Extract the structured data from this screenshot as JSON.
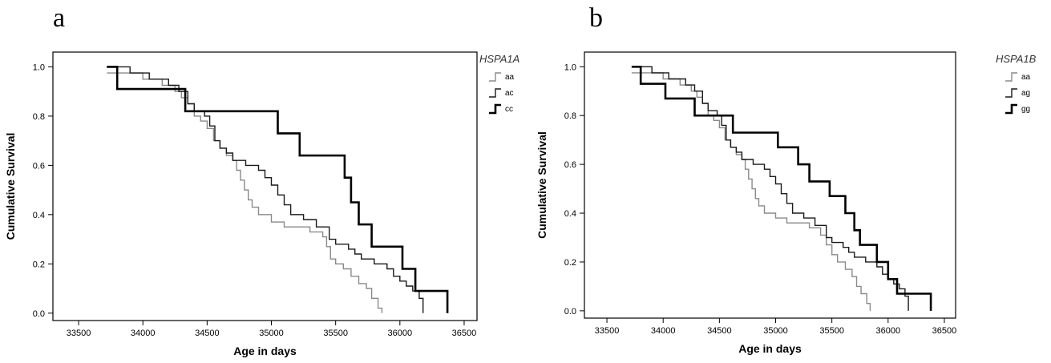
{
  "panels": [
    {
      "letter": "a"
    },
    {
      "letter": "b"
    }
  ],
  "chart_data": [
    {
      "type": "line",
      "step": true,
      "xlabel": "Age in days",
      "ylabel": "Cumulative Survival",
      "xlim": [
        33300,
        36600
      ],
      "ylim": [
        -0.03,
        1.06
      ],
      "xticks": [
        33500,
        34000,
        34500,
        35000,
        35500,
        36000,
        36500
      ],
      "yticks": [
        "0.0",
        "0.2",
        "0.4",
        "0.6",
        "0.8",
        "1.0"
      ],
      "legend_title": "HSPA1A",
      "legend_position": "right",
      "series": [
        {
          "name": "aa",
          "stroke": "#8a8a8a",
          "width": 1.4,
          "points": [
            [
              33720,
              0.975
            ],
            [
              34000,
              0.95
            ],
            [
              34150,
              0.925
            ],
            [
              34250,
              0.9
            ],
            [
              34300,
              0.875
            ],
            [
              34350,
              0.85
            ],
            [
              34400,
              0.8
            ],
            [
              34450,
              0.78
            ],
            [
              34500,
              0.75
            ],
            [
              34550,
              0.7
            ],
            [
              34600,
              0.67
            ],
            [
              34650,
              0.64
            ],
            [
              34700,
              0.62
            ],
            [
              34730,
              0.58
            ],
            [
              34760,
              0.54
            ],
            [
              34790,
              0.5
            ],
            [
              34820,
              0.46
            ],
            [
              34850,
              0.43
            ],
            [
              34900,
              0.4
            ],
            [
              35000,
              0.37
            ],
            [
              35100,
              0.35
            ],
            [
              35300,
              0.33
            ],
            [
              35400,
              0.31
            ],
            [
              35430,
              0.27
            ],
            [
              35460,
              0.22
            ],
            [
              35500,
              0.2
            ],
            [
              35560,
              0.18
            ],
            [
              35620,
              0.15
            ],
            [
              35680,
              0.12
            ],
            [
              35740,
              0.1
            ],
            [
              35780,
              0.06
            ],
            [
              35830,
              0.02
            ],
            [
              35860,
              0.0
            ]
          ]
        },
        {
          "name": "ac",
          "stroke": "#1a1a1a",
          "width": 1.4,
          "points": [
            [
              33720,
              1.0
            ],
            [
              33900,
              0.975
            ],
            [
              34050,
              0.95
            ],
            [
              34200,
              0.925
            ],
            [
              34280,
              0.9
            ],
            [
              34350,
              0.85
            ],
            [
              34400,
              0.82
            ],
            [
              34480,
              0.8
            ],
            [
              34520,
              0.76
            ],
            [
              34560,
              0.7
            ],
            [
              34600,
              0.67
            ],
            [
              34650,
              0.65
            ],
            [
              34700,
              0.62
            ],
            [
              34800,
              0.6
            ],
            [
              34900,
              0.58
            ],
            [
              34950,
              0.55
            ],
            [
              35000,
              0.52
            ],
            [
              35050,
              0.48
            ],
            [
              35100,
              0.44
            ],
            [
              35150,
              0.4
            ],
            [
              35250,
              0.38
            ],
            [
              35350,
              0.35
            ],
            [
              35450,
              0.3
            ],
            [
              35500,
              0.28
            ],
            [
              35600,
              0.26
            ],
            [
              35650,
              0.24
            ],
            [
              35700,
              0.22
            ],
            [
              35800,
              0.2
            ],
            [
              35900,
              0.18
            ],
            [
              35950,
              0.15
            ],
            [
              36000,
              0.13
            ],
            [
              36050,
              0.11
            ],
            [
              36100,
              0.09
            ],
            [
              36150,
              0.06
            ],
            [
              36180,
              0.02
            ],
            [
              36180,
              0.0
            ]
          ]
        },
        {
          "name": "cc",
          "stroke": "#000000",
          "width": 2.6,
          "points": [
            [
              33720,
              1.0
            ],
            [
              33800,
              0.91
            ],
            [
              34330,
              0.82
            ],
            [
              35050,
              0.73
            ],
            [
              35220,
              0.64
            ],
            [
              35570,
              0.55
            ],
            [
              35620,
              0.45
            ],
            [
              35680,
              0.36
            ],
            [
              35780,
              0.27
            ],
            [
              36020,
              0.18
            ],
            [
              36120,
              0.09
            ],
            [
              36370,
              0.0
            ]
          ]
        }
      ]
    },
    {
      "type": "line",
      "step": true,
      "xlabel": "Age in days",
      "ylabel": "Cumulative Survival",
      "xlim": [
        33300,
        36600
      ],
      "ylim": [
        -0.03,
        1.06
      ],
      "xticks": [
        33500,
        34000,
        34500,
        35000,
        35500,
        36000,
        36500
      ],
      "yticks": [
        "0.0",
        "0.2",
        "0.4",
        "0.6",
        "0.8",
        "1.0"
      ],
      "legend_title": "HSPA1B",
      "legend_position": "right",
      "series": [
        {
          "name": "aa",
          "stroke": "#8a8a8a",
          "width": 1.4,
          "points": [
            [
              33720,
              0.975
            ],
            [
              34000,
              0.95
            ],
            [
              34150,
              0.925
            ],
            [
              34250,
              0.9
            ],
            [
              34300,
              0.875
            ],
            [
              34350,
              0.85
            ],
            [
              34400,
              0.8
            ],
            [
              34450,
              0.78
            ],
            [
              34500,
              0.75
            ],
            [
              34550,
              0.7
            ],
            [
              34600,
              0.67
            ],
            [
              34650,
              0.64
            ],
            [
              34700,
              0.62
            ],
            [
              34730,
              0.58
            ],
            [
              34760,
              0.54
            ],
            [
              34790,
              0.5
            ],
            [
              34820,
              0.46
            ],
            [
              34850,
              0.43
            ],
            [
              34900,
              0.4
            ],
            [
              35000,
              0.38
            ],
            [
              35100,
              0.36
            ],
            [
              35300,
              0.34
            ],
            [
              35400,
              0.31
            ],
            [
              35450,
              0.27
            ],
            [
              35500,
              0.23
            ],
            [
              35550,
              0.2
            ],
            [
              35620,
              0.17
            ],
            [
              35680,
              0.14
            ],
            [
              35720,
              0.1
            ],
            [
              35760,
              0.07
            ],
            [
              35810,
              0.03
            ],
            [
              35840,
              0.0
            ]
          ]
        },
        {
          "name": "ag",
          "stroke": "#1a1a1a",
          "width": 1.4,
          "points": [
            [
              33720,
              1.0
            ],
            [
              33900,
              0.975
            ],
            [
              34050,
              0.95
            ],
            [
              34200,
              0.925
            ],
            [
              34280,
              0.9
            ],
            [
              34350,
              0.85
            ],
            [
              34400,
              0.82
            ],
            [
              34480,
              0.8
            ],
            [
              34520,
              0.76
            ],
            [
              34560,
              0.7
            ],
            [
              34600,
              0.67
            ],
            [
              34650,
              0.65
            ],
            [
              34700,
              0.62
            ],
            [
              34800,
              0.6
            ],
            [
              34900,
              0.58
            ],
            [
              34950,
              0.55
            ],
            [
              35000,
              0.52
            ],
            [
              35050,
              0.48
            ],
            [
              35100,
              0.44
            ],
            [
              35150,
              0.4
            ],
            [
              35250,
              0.38
            ],
            [
              35350,
              0.35
            ],
            [
              35450,
              0.3
            ],
            [
              35500,
              0.28
            ],
            [
              35600,
              0.26
            ],
            [
              35650,
              0.24
            ],
            [
              35700,
              0.22
            ],
            [
              35800,
              0.2
            ],
            [
              35900,
              0.18
            ],
            [
              35950,
              0.15
            ],
            [
              36000,
              0.13
            ],
            [
              36050,
              0.11
            ],
            [
              36100,
              0.09
            ],
            [
              36150,
              0.06
            ],
            [
              36180,
              0.02
            ],
            [
              36180,
              0.0
            ]
          ]
        },
        {
          "name": "gg",
          "stroke": "#000000",
          "width": 2.6,
          "points": [
            [
              33720,
              1.0
            ],
            [
              33800,
              0.93
            ],
            [
              34020,
              0.87
            ],
            [
              34280,
              0.8
            ],
            [
              34620,
              0.73
            ],
            [
              35020,
              0.67
            ],
            [
              35200,
              0.6
            ],
            [
              35300,
              0.53
            ],
            [
              35480,
              0.47
            ],
            [
              35620,
              0.4
            ],
            [
              35700,
              0.33
            ],
            [
              35750,
              0.27
            ],
            [
              35900,
              0.2
            ],
            [
              36000,
              0.13
            ],
            [
              36080,
              0.07
            ],
            [
              36380,
              0.0
            ]
          ]
        }
      ]
    }
  ]
}
